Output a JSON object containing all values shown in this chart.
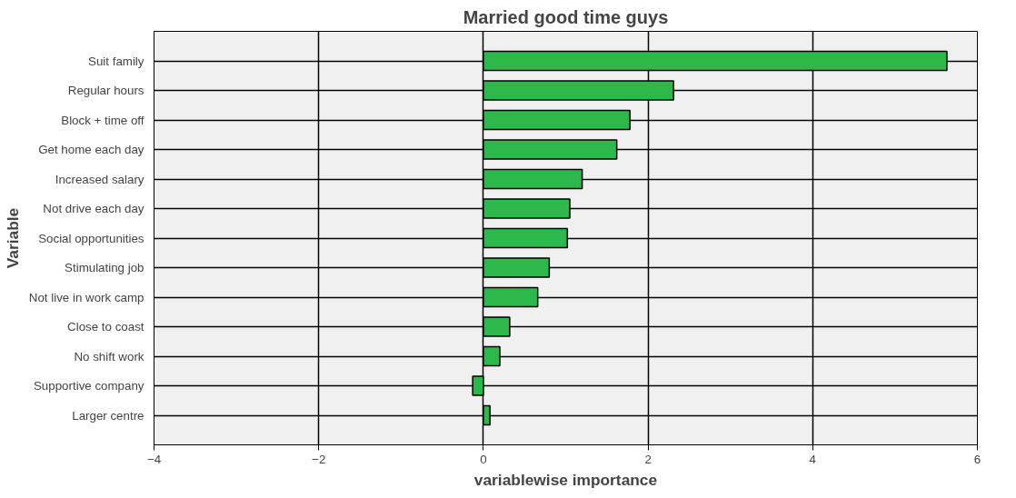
{
  "chart_data": {
    "type": "bar",
    "orientation": "horizontal",
    "title": "Married good time guys",
    "xlabel": "variablewise importance",
    "ylabel": "Variable",
    "categories": [
      "Suit family",
      "Regular hours",
      "Block + time off",
      "Get home each day",
      "Increased salary",
      "Not drive each day",
      "Social opportunities",
      "Stimulating job",
      "Not live in work camp",
      "Close to coast",
      "No shift work",
      "Supportive company",
      "Larger centre"
    ],
    "values": [
      5.63,
      2.31,
      1.78,
      1.62,
      1.2,
      1.05,
      1.02,
      0.8,
      0.66,
      0.32,
      0.2,
      -0.13,
      0.08
    ],
    "color": "#2db84b",
    "xlim": [
      -4,
      6
    ],
    "xticks": [
      -4,
      -2,
      0,
      2,
      4,
      6
    ],
    "grid": true
  }
}
